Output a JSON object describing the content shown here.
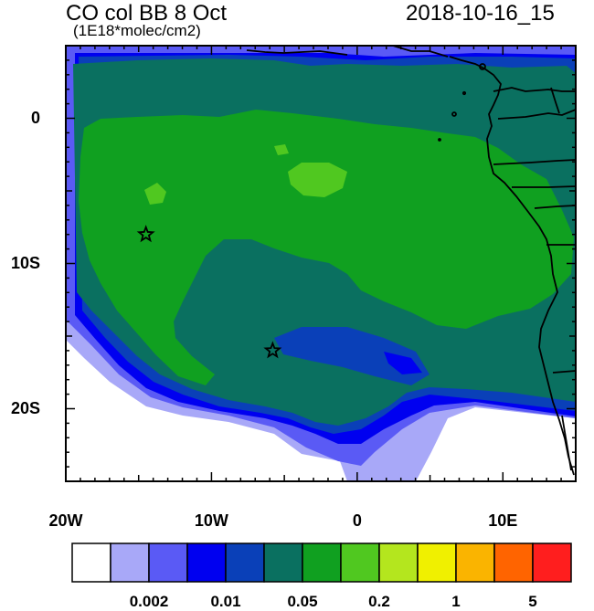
{
  "header": {
    "title": "CO col BB 8 Oct",
    "subtitle": "(1E18*molec/cm2)",
    "datetime": "2018-10-16_15"
  },
  "map": {
    "lon_range": [
      -20,
      15
    ],
    "lat_range": [
      -25,
      5
    ],
    "y_ticks": [
      {
        "lat": 0,
        "label": "0"
      },
      {
        "lat": -10,
        "label": "10S"
      },
      {
        "lat": -20,
        "label": "20S"
      }
    ],
    "x_ticks": [
      {
        "lon": -20,
        "label": "20W"
      },
      {
        "lon": -10,
        "label": "10W"
      },
      {
        "lon": 0,
        "label": "0"
      },
      {
        "lon": 10,
        "label": "10E"
      }
    ],
    "markers": [
      {
        "lon": -14.5,
        "lat": -8,
        "symbol": "star"
      },
      {
        "lon": -5.8,
        "lat": -16,
        "symbol": "star"
      }
    ]
  },
  "colorbar": {
    "colors": [
      "#ffffff",
      "#a8a8f8",
      "#5a5af5",
      "#0000f0",
      "#0a40b8",
      "#0a7060",
      "#10a020",
      "#50c820",
      "#b4e61e",
      "#f0f000",
      "#fab400",
      "#ff6400",
      "#ff1e1e"
    ],
    "labels": [
      {
        "after_box": 2,
        "text": "0.002"
      },
      {
        "after_box": 4,
        "text": "0.01"
      },
      {
        "after_box": 6,
        "text": "0.05"
      },
      {
        "after_box": 8,
        "text": "0.2"
      },
      {
        "after_box": 10,
        "text": "1"
      },
      {
        "after_box": 12,
        "text": "5"
      }
    ]
  }
}
